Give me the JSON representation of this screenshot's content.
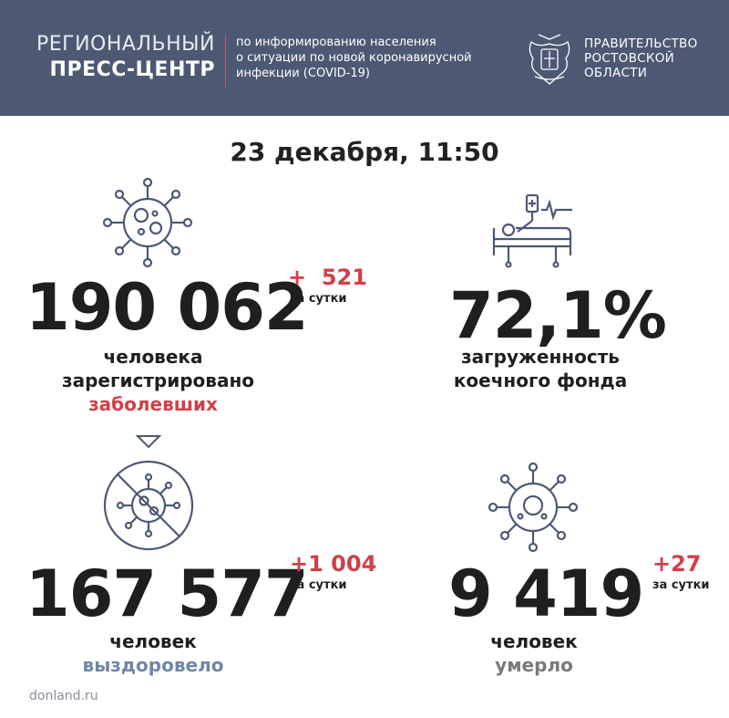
{
  "header": {
    "brand_line1": "РЕГИОНАЛЬНЫЙ",
    "brand_line2": "ПРЕСС-ЦЕНТР",
    "desc_line1": "по информированию населения",
    "desc_line2": "о ситуации по новой коронавирусной",
    "desc_line3": "инфекции (COVID-19)",
    "gov_line1": "ПРАВИТЕЛЬСТВО",
    "gov_line2": "РОСТОВСКОЙ",
    "gov_line3": "ОБЛАСТИ"
  },
  "date": "23 декабря, 11:50",
  "cases": {
    "value": "190 062",
    "delta_sign": "+",
    "delta": "521",
    "per_day": "за сутки",
    "label1": "человека",
    "label2": "зарегистрировано",
    "label3": "заболевших"
  },
  "beds": {
    "value": "72,1%",
    "label1": "загруженность",
    "label2": "коечного фонда"
  },
  "recovered": {
    "value": "167 577",
    "delta": "+1 004",
    "per_day": "за сутки",
    "label1": "человек",
    "label2": "выздоровело"
  },
  "deaths": {
    "value": "9 419",
    "delta": "+27",
    "per_day": "за сутки",
    "label1": "человек",
    "label2": "умерло"
  },
  "footer": "donland.ru",
  "colors": {
    "header_bg": "#4d5873",
    "accent_red": "#d0404a",
    "accent_blue": "#6f86a8"
  }
}
